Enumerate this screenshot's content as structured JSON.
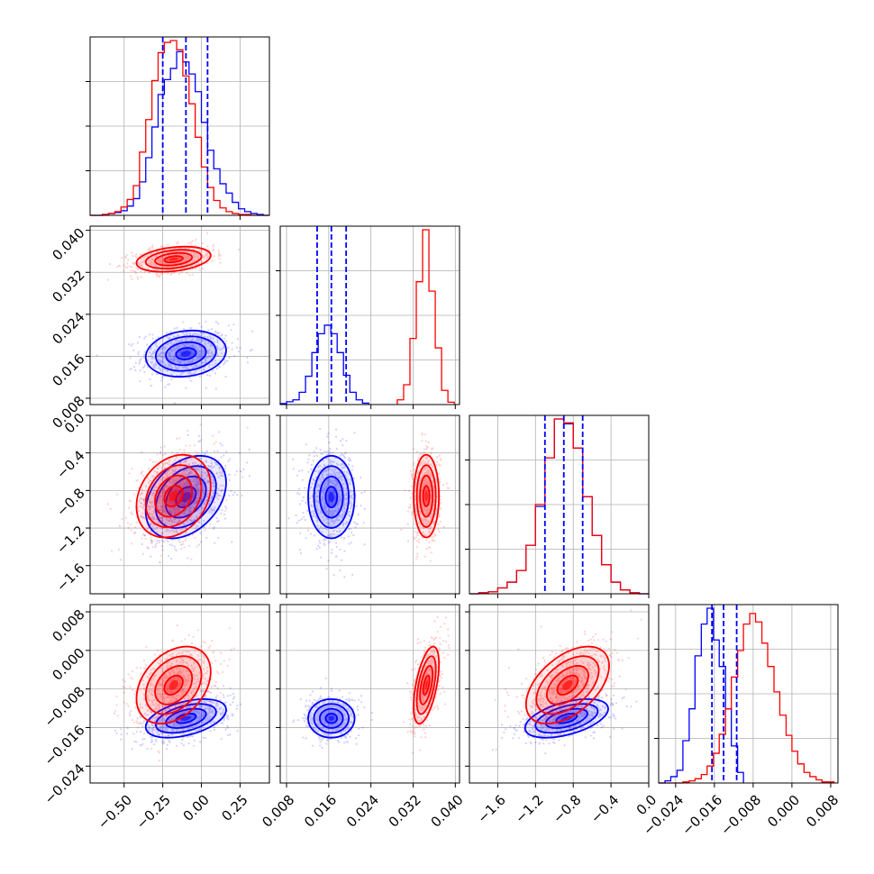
{
  "colors": {
    "series_a": "#0000ff",
    "series_b": "#ff0000",
    "quantile_lines": "#0000ff",
    "grid": "#b0b0b0",
    "axes": "#000000"
  },
  "chart_data": {
    "type": "corner",
    "description_of_layout": "4x4 lower-triangular corner plot; diagonal = 1D histograms, off-diagonal = 2D density contours with scatter points",
    "grid": true,
    "legend": "none",
    "parameters": [
      {
        "index": 0,
        "range": [
          -0.72,
          0.44
        ],
        "ticks": [
          -0.5,
          -0.25,
          0.0,
          0.25
        ],
        "tick_labels": [
          "−0.50",
          "−0.25",
          "0.00",
          "0.25"
        ],
        "quantiles": [
          -0.25,
          -0.1,
          0.04
        ]
      },
      {
        "index": 1,
        "range": [
          0.0068,
          0.0408
        ],
        "ticks": [
          0.008,
          0.016,
          0.024,
          0.032,
          0.04
        ],
        "tick_labels": [
          "0.008",
          "0.016",
          "0.024",
          "0.032",
          "0.040"
        ],
        "quantiles": [
          0.0138,
          0.0165,
          0.0193
        ]
      },
      {
        "index": 2,
        "range": [
          -1.9,
          0.0
        ],
        "ticks": [
          -1.6,
          -1.2,
          -0.8,
          -0.4,
          0.0
        ],
        "tick_labels": [
          "−1.6",
          "−1.2",
          "−0.8",
          "−0.4",
          "0.0"
        ],
        "quantiles": [
          -1.1,
          -0.9,
          -0.7
        ]
      },
      {
        "index": 3,
        "range": [
          -0.0275,
          0.0095
        ],
        "ticks": [
          -0.024,
          -0.016,
          -0.008,
          0.0,
          0.008
        ],
        "tick_labels": [
          "−0.024",
          "−0.016",
          "−0.008",
          "0.000",
          "0.008"
        ],
        "quantiles": [
          -0.0165,
          -0.0141,
          -0.0114
        ]
      }
    ],
    "series": [
      {
        "color": "#0000ff",
        "mean": [
          -0.1,
          0.0165,
          -0.87,
          -0.0141
        ],
        "sigma": [
          0.13,
          0.0022,
          0.22,
          0.002
        ],
        "histograms": [
          {
            "bins": [
              -0.72,
              -0.68,
              -0.64,
              -0.6,
              -0.56,
              -0.52,
              -0.48,
              -0.44,
              -0.4,
              -0.36,
              -0.32,
              -0.28,
              -0.24,
              -0.2,
              -0.16,
              -0.12,
              -0.08,
              -0.04,
              0.0,
              0.04,
              0.08,
              0.12,
              0.16,
              0.2,
              0.24,
              0.28,
              0.32,
              0.36,
              0.4,
              0.44
            ],
            "counts": [
              0,
              0,
              1,
              2,
              3,
              5,
              10,
              18,
              36,
              62,
              95,
              130,
              146,
              158,
              176,
              165,
              152,
              133,
              100,
              70,
              50,
              34,
              24,
              14,
              7,
              4,
              2,
              1,
              0
            ]
          },
          {
            "bins": [
              0.0068,
              0.008,
              0.0092,
              0.0104,
              0.0116,
              0.0128,
              0.014,
              0.0152,
              0.0164,
              0.0176,
              0.0188,
              0.02,
              0.0212,
              0.0224,
              0.0236
            ],
            "counts": [
              2,
              6,
              10,
              26,
              60,
              110,
              150,
              168,
              150,
              110,
              62,
              26,
              10,
              3
            ]
          },
          {
            "bins": [
              -1.9,
              -1.8,
              -1.7,
              -1.6,
              -1.5,
              -1.4,
              -1.3,
              -1.2,
              -1.1,
              -1.0,
              -0.9,
              -0.8,
              -0.7,
              -0.6,
              -0.5,
              -0.4,
              -0.3,
              -0.2,
              -0.1,
              0.0
            ],
            "counts": [
              0,
              1,
              2,
              6,
              12,
              24,
              50,
              90,
              140,
              180,
              175,
              150,
              100,
              60,
              30,
              12,
              4,
              1,
              0
            ]
          },
          {
            "bins": [
              -0.0275,
              -0.0262,
              -0.025,
              -0.0237,
              -0.0225,
              -0.0212,
              -0.02,
              -0.0187,
              -0.0175,
              -0.0162,
              -0.015,
              -0.0137,
              -0.0125,
              -0.0112,
              -0.01
            ],
            "counts": [
              0,
              2,
              6,
              12,
              40,
              70,
              120,
              150,
              165,
              135,
              110,
              70,
              35,
              10
            ]
          }
        ],
        "covariances": {
          "0-2": 0.35,
          "0-3": 0.45,
          "1-2": 0.0,
          "1-3": 0.0,
          "2-3": 0.5,
          "0-1": 0.15
        }
      },
      {
        "color": "#ff0000",
        "mean": [
          -0.18,
          0.0345,
          -0.86,
          -0.0072
        ],
        "sigma": [
          0.12,
          0.0012,
          0.22,
          0.004
        ],
        "histograms": [
          {
            "bins": [
              -0.72,
              -0.68,
              -0.64,
              -0.6,
              -0.56,
              -0.52,
              -0.48,
              -0.44,
              -0.4,
              -0.36,
              -0.32,
              -0.28,
              -0.24,
              -0.2,
              -0.16,
              -0.12,
              -0.08,
              -0.04,
              0.0,
              0.04,
              0.08,
              0.12,
              0.16,
              0.2,
              0.24,
              0.28,
              0.32,
              0.36,
              0.4,
              0.44
            ],
            "counts": [
              0,
              0,
              1,
              2,
              4,
              9,
              17,
              32,
              68,
              103,
              145,
              175,
              186,
              188,
              178,
              150,
              120,
              84,
              52,
              30,
              16,
              8,
              4,
              2,
              1,
              1,
              0,
              0,
              0
            ]
          },
          {
            "bins": [
              0.029,
              0.0302,
              0.0314,
              0.0326,
              0.0338,
              0.035,
              0.0362,
              0.0374,
              0.0386,
              0.0398
            ],
            "counts": [
              10,
              42,
              140,
              260,
              370,
              240,
              120,
              30,
              5
            ]
          },
          {
            "bins": [
              -1.9,
              -1.8,
              -1.7,
              -1.6,
              -1.5,
              -1.4,
              -1.3,
              -1.2,
              -1.1,
              -1.0,
              -0.9,
              -0.8,
              -0.7,
              -0.6,
              -0.5,
              -0.4,
              -0.3,
              -0.2,
              -0.1,
              0.0
            ],
            "counts": [
              0,
              1,
              2,
              6,
              12,
              24,
              50,
              92,
              140,
              180,
              176,
              150,
              100,
              60,
              30,
              12,
              4,
              1,
              0
            ]
          },
          {
            "bins": [
              -0.0275,
              -0.0262,
              -0.025,
              -0.0237,
              -0.0225,
              -0.0212,
              -0.02,
              -0.0187,
              -0.0175,
              -0.0162,
              -0.015,
              -0.0137,
              -0.0125,
              -0.0112,
              -0.01,
              -0.0087,
              -0.0075,
              -0.0062,
              -0.005,
              -0.0037,
              -0.0025,
              -0.0012,
              0.0,
              0.0012,
              0.0025,
              0.0037,
              0.005,
              0.0062,
              0.0075,
              0.0087
            ],
            "counts": [
              0,
              0,
              0,
              0,
              1,
              2,
              4,
              8,
              16,
              28,
              46,
              70,
              100,
              125,
              150,
              160,
              152,
              132,
              110,
              86,
              64,
              45,
              30,
              18,
              10,
              6,
              3,
              1,
              1
            ]
          }
        ],
        "covariances": {
          "0-1": 0.3,
          "0-2": 0.25,
          "0-3": 0.35,
          "1-2": 0.0,
          "1-3": 0.55,
          "2-3": 0.5
        }
      }
    ]
  }
}
